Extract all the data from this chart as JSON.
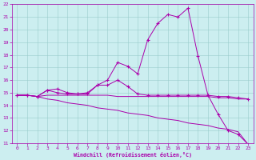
{
  "xlabel": "Windchill (Refroidissement éolien,°C)",
  "xlim": [
    -0.5,
    23.5
  ],
  "ylim": [
    11,
    22
  ],
  "xticks": [
    0,
    1,
    2,
    3,
    4,
    5,
    6,
    7,
    8,
    9,
    10,
    11,
    12,
    13,
    14,
    15,
    16,
    17,
    18,
    19,
    20,
    21,
    22,
    23
  ],
  "yticks": [
    11,
    12,
    13,
    14,
    15,
    16,
    17,
    18,
    19,
    20,
    21,
    22
  ],
  "bg_color": "#cceef0",
  "line_color": "#aa00aa",
  "grid_color": "#99cccc",
  "line1_x": [
    0,
    1,
    2,
    3,
    4,
    5,
    6,
    7,
    8,
    9,
    10,
    11,
    12,
    13,
    14,
    15,
    16,
    17,
    18,
    19,
    20,
    21,
    22,
    23
  ],
  "line1_y": [
    14.8,
    14.8,
    14.7,
    15.2,
    15.3,
    15.0,
    14.9,
    15.0,
    15.6,
    16.0,
    17.4,
    17.1,
    16.5,
    19.2,
    20.5,
    21.2,
    21.0,
    21.7,
    17.9,
    14.8,
    13.3,
    12.0,
    11.7,
    10.9
  ],
  "line2_x": [
    0,
    1,
    2,
    3,
    4,
    5,
    6,
    7,
    8,
    9,
    10,
    11,
    12,
    13,
    14,
    15,
    16,
    17,
    18,
    19,
    20,
    21,
    22,
    23
  ],
  "line2_y": [
    14.8,
    14.8,
    14.7,
    14.8,
    14.8,
    14.8,
    14.8,
    14.8,
    14.8,
    14.8,
    14.7,
    14.7,
    14.7,
    14.7,
    14.7,
    14.7,
    14.7,
    14.7,
    14.7,
    14.7,
    14.6,
    14.6,
    14.5,
    14.5
  ],
  "line3_x": [
    0,
    1,
    2,
    3,
    4,
    5,
    6,
    7,
    8,
    9,
    10,
    11,
    12,
    13,
    14,
    15,
    16,
    17,
    18,
    19,
    20,
    21,
    22,
    23
  ],
  "line3_y": [
    14.8,
    14.8,
    14.7,
    14.5,
    14.4,
    14.2,
    14.1,
    14.0,
    13.8,
    13.7,
    13.6,
    13.4,
    13.3,
    13.2,
    13.0,
    12.9,
    12.8,
    12.6,
    12.5,
    12.4,
    12.2,
    12.1,
    11.9,
    10.9
  ],
  "line4_x": [
    0,
    1,
    2,
    3,
    4,
    5,
    6,
    7,
    8,
    9,
    10,
    11,
    12,
    13,
    14,
    15,
    16,
    17,
    18,
    19,
    20,
    21,
    22,
    23
  ],
  "line4_y": [
    14.8,
    14.8,
    14.7,
    15.2,
    15.0,
    14.9,
    14.9,
    14.9,
    15.6,
    15.6,
    16.0,
    15.5,
    14.9,
    14.8,
    14.8,
    14.8,
    14.8,
    14.8,
    14.8,
    14.8,
    14.7,
    14.7,
    14.6,
    14.5
  ]
}
